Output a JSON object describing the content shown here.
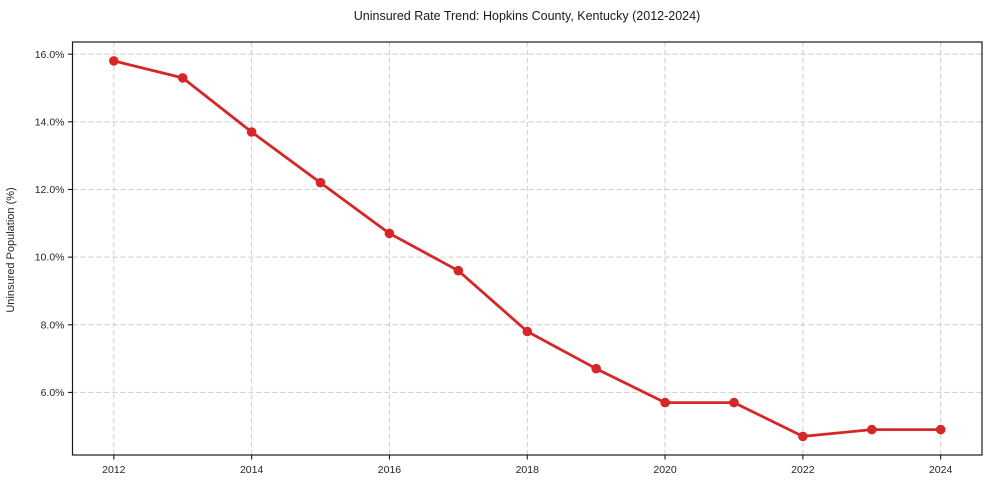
{
  "figure": {
    "background": "#ffffff"
  },
  "chart_data": {
    "type": "line",
    "title": "Uninsured Rate Trend: Hopkins County, Kentucky (2012-2024)",
    "xlabel": "",
    "ylabel": "Uninsured Population (%)",
    "x": [
      2012,
      2013,
      2014,
      2015,
      2016,
      2017,
      2018,
      2019,
      2020,
      2021,
      2022,
      2023,
      2024
    ],
    "values": [
      15.8,
      15.3,
      13.7,
      12.2,
      10.7,
      9.6,
      7.8,
      6.7,
      5.7,
      5.7,
      4.7,
      4.9,
      4.9
    ],
    "xticks": [
      2012,
      2014,
      2016,
      2018,
      2020,
      2022,
      2024
    ],
    "xtick_labels": [
      "2012",
      "2014",
      "2016",
      "2018",
      "2020",
      "2022",
      "2024"
    ],
    "yticks": [
      6.0,
      8.0,
      10.0,
      12.0,
      14.0,
      16.0
    ],
    "ytick_labels": [
      "6.0%",
      "8.0%",
      "10.0%",
      "12.0%",
      "14.0%",
      "16.0%"
    ],
    "xlim": [
      2011.4,
      2024.6
    ],
    "ylim": [
      4.15,
      16.36
    ],
    "grid": true,
    "grid_style": "dashed",
    "legend": "none",
    "line_color": "#d62728",
    "marker": "circle",
    "grid_color": "#cccccc",
    "axis_color": "#1a1a1a",
    "text_color": "#262626",
    "background": "#ffffff"
  }
}
